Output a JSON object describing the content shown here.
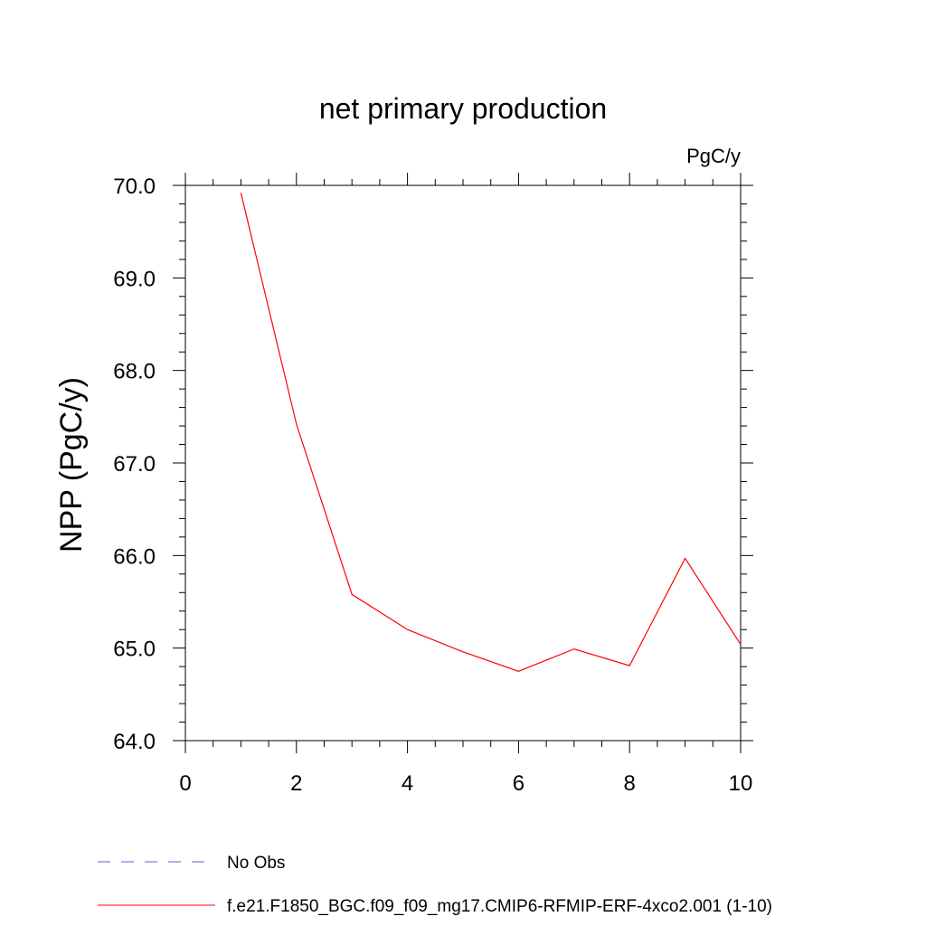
{
  "chart_data": {
    "type": "line",
    "title": "net primary production",
    "units_label": "PgC/y",
    "xlabel": "",
    "ylabel": "NPP  (PgC/y)",
    "xlim": [
      0,
      10
    ],
    "ylim": [
      64.0,
      70.0
    ],
    "x_ticks": [
      0,
      2,
      4,
      6,
      8,
      10
    ],
    "x_tick_labels": [
      "0",
      "2",
      "4",
      "6",
      "8",
      "10"
    ],
    "y_ticks": [
      64.0,
      65.0,
      66.0,
      67.0,
      68.0,
      69.0,
      70.0
    ],
    "y_tick_labels": [
      "64.0",
      "65.0",
      "66.0",
      "67.0",
      "68.0",
      "69.0",
      "70.0"
    ],
    "grid": false,
    "legend_position": "bottom",
    "series": [
      {
        "name": "f.e21.F1850_BGC.f09_f09_mg17.CMIP6-RFMIP-ERF-4xco2.001 (1-10)",
        "color": "#ff0000",
        "style": "solid",
        "x": [
          1,
          2,
          3,
          4,
          5,
          6,
          7,
          8,
          9,
          10
        ],
        "values": [
          69.92,
          67.42,
          65.58,
          65.2,
          64.96,
          64.75,
          64.99,
          64.81,
          65.97,
          65.04
        ]
      }
    ],
    "legend": [
      {
        "label": "No Obs",
        "color": "#6a5acd",
        "style": "dashed"
      },
      {
        "label": "f.e21.F1850_BGC.f09_f09_mg17.CMIP6-RFMIP-ERF-4xco2.001 (1-10)",
        "color": "#ff0000",
        "style": "solid"
      }
    ]
  }
}
